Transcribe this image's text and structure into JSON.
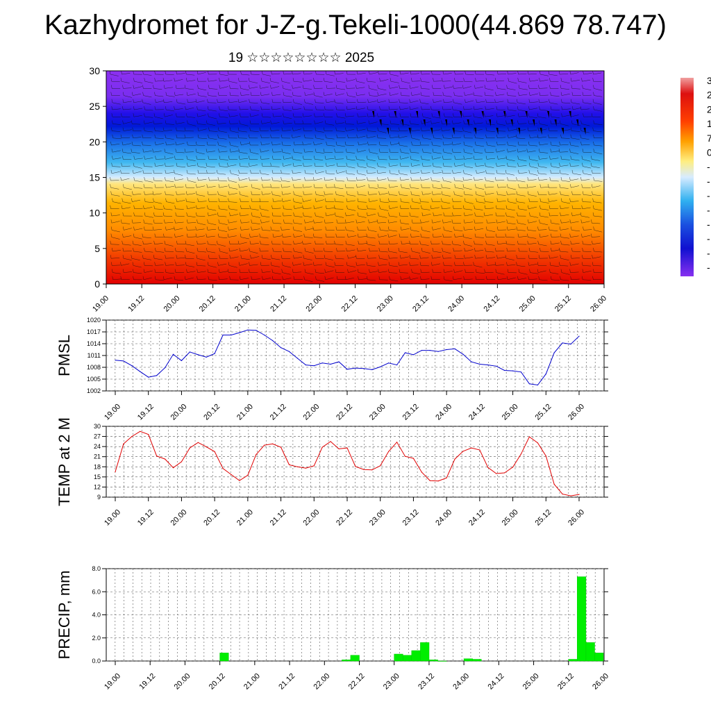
{
  "title": "Kazhydromet for J-Z-g.Tekeli-1000(44.869 78.747)",
  "subtitle": "19 ☆☆☆☆☆☆☆☆ 2025",
  "x_tick_labels": [
    "19.00",
    "19.12",
    "20.00",
    "20.12",
    "21.00",
    "21.12",
    "22.00",
    "22.12",
    "23.00",
    "23.12",
    "24.00",
    "24.12",
    "25.00",
    "25.12",
    "26.00"
  ],
  "colorbar_labels": [
    "3",
    "2",
    "2",
    "1",
    "7",
    "0",
    "-",
    "-",
    "-",
    "-",
    "-",
    "-",
    "-",
    "-"
  ],
  "chart_data": [
    {
      "type": "heatmap",
      "description_panel": "cross-section",
      "xlabel": "",
      "ylabel": "",
      "ylim": [
        0,
        30
      ],
      "y_ticks": [
        0,
        5,
        10,
        15,
        20,
        25,
        30
      ],
      "x": [
        "19.00",
        "19.12",
        "20.00",
        "20.12",
        "21.00",
        "21.12",
        "22.00",
        "22.12",
        "23.00",
        "23.12",
        "24.00",
        "24.12",
        "25.00",
        "25.12",
        "26.00"
      ]
    },
    {
      "type": "line",
      "ylabel": "PMSL",
      "ylim": [
        1002,
        1020
      ],
      "y_ticks": [
        1002,
        1005,
        1008,
        1011,
        1014,
        1017,
        1020
      ],
      "color": "#0000cc",
      "x_hours": [
        0,
        3,
        6,
        9,
        12,
        15,
        18,
        21,
        24,
        27,
        30,
        33,
        36,
        39,
        42,
        45,
        48,
        51,
        54,
        57,
        60,
        63,
        66,
        69,
        72,
        75,
        78,
        81,
        84,
        87,
        90,
        93,
        96,
        99,
        102,
        105,
        108,
        111,
        114,
        117,
        120,
        123,
        126,
        129,
        132,
        135,
        138,
        141,
        144,
        147,
        150,
        153,
        156,
        159,
        162,
        165,
        168
      ],
      "values": [
        1009.8,
        1009.6,
        1008.4,
        1006.9,
        1005.5,
        1005.9,
        1007.9,
        1011.3,
        1009.7,
        1011.9,
        1011.2,
        1010.6,
        1011.5,
        1016.2,
        1016.2,
        1016.8,
        1017.5,
        1017.4,
        1016.2,
        1014.8,
        1013.0,
        1012.0,
        1010.3,
        1008.6,
        1008.4,
        1009.1,
        1008.8,
        1009.4,
        1007.5,
        1007.8,
        1007.7,
        1007.4,
        1008.1,
        1009.1,
        1008.6,
        1011.7,
        1011.2,
        1012.3,
        1012.3,
        1012.0,
        1012.5,
        1012.7,
        1011.3,
        1009.4,
        1008.8,
        1008.6,
        1008.3,
        1007.2,
        1007.1,
        1006.8,
        1003.8,
        1003.5,
        1006.3,
        1011.7,
        1014.2,
        1013.9,
        1015.9
      ]
    },
    {
      "type": "line",
      "ylabel": "TEMP at 2 M",
      "ylim": [
        9,
        30
      ],
      "y_ticks": [
        9,
        12,
        15,
        18,
        21,
        24,
        27,
        30
      ],
      "color": "#e00000",
      "x_hours": [
        0,
        3,
        6,
        9,
        12,
        15,
        18,
        21,
        24,
        27,
        30,
        33,
        36,
        39,
        42,
        45,
        48,
        51,
        54,
        57,
        60,
        63,
        66,
        69,
        72,
        75,
        78,
        81,
        84,
        87,
        90,
        93,
        96,
        99,
        102,
        105,
        108,
        111,
        114,
        117,
        120,
        123,
        126,
        129,
        132,
        135,
        138,
        141,
        144,
        147,
        150,
        153,
        156,
        159,
        162,
        165,
        168
      ],
      "values": [
        16.5,
        24.8,
        27.0,
        28.5,
        27.6,
        21.2,
        20.3,
        17.7,
        19.5,
        23.6,
        25.2,
        23.9,
        22.5,
        17.5,
        15.7,
        13.9,
        15.5,
        21.6,
        24.4,
        24.8,
        23.8,
        18.6,
        18.0,
        17.6,
        18.3,
        23.8,
        25.5,
        23.3,
        23.6,
        18.1,
        17.2,
        17.1,
        18.3,
        22.5,
        25.3,
        21.1,
        20.5,
        16.4,
        13.9,
        13.8,
        14.7,
        20.3,
        22.6,
        23.6,
        23.0,
        17.8,
        16.0,
        16.2,
        17.9,
        21.8,
        26.9,
        25.1,
        21.2,
        12.8,
        9.9,
        9.4,
        9.8
      ]
    },
    {
      "type": "bar",
      "ylabel": "PRECIP, mm",
      "ylim": [
        0,
        8
      ],
      "y_ticks": [
        "0.0",
        "2.0",
        "4.0",
        "6.0",
        "8.0"
      ],
      "color": "#00ee00",
      "x_hours": [
        39,
        81,
        84,
        99,
        102,
        105,
        108,
        111,
        114,
        123,
        126,
        159,
        162,
        165,
        168
      ],
      "values": [
        0.7,
        0.1,
        0.5,
        0.6,
        0.5,
        0.9,
        1.6,
        0.1,
        0.0,
        0.2,
        0.15,
        0.15,
        7.3,
        1.6,
        0.7
      ]
    }
  ]
}
